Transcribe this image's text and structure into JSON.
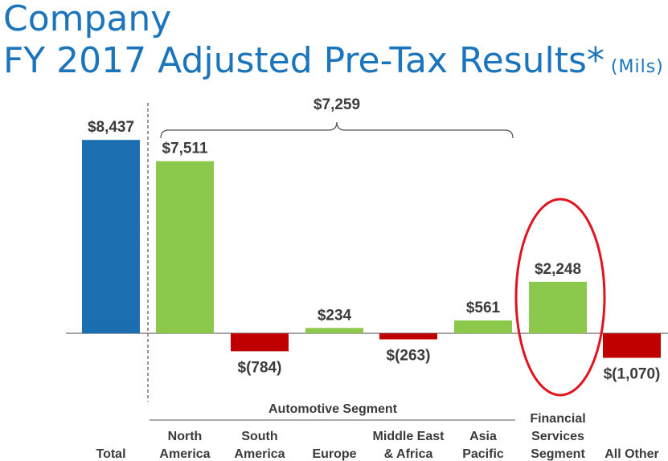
{
  "title_line1": "Company",
  "title_line2": "FY 2017 Adjusted Pre-Tax Results*",
  "units": "(Mils)",
  "colors": {
    "total": "#1b6fb1",
    "positive": "#8cc84b",
    "negative": "#c00000",
    "highlight_circle": "#e0141e",
    "axis": "#3b3b3b"
  },
  "chart_data": {
    "type": "bar",
    "categories": [
      "Total",
      "North America",
      "South America",
      "Europe",
      "Middle East & Africa",
      "Asia Pacific",
      "Financial Services Segment",
      "All Other"
    ],
    "category_lines": [
      [
        "Total"
      ],
      [
        "North",
        "America"
      ],
      [
        "South",
        "America"
      ],
      [
        "Europe"
      ],
      [
        "Middle East",
        "& Africa"
      ],
      [
        "Asia",
        "Pacific"
      ],
      [
        "Financial",
        "Services",
        "Segment"
      ],
      [
        "All Other"
      ]
    ],
    "values": [
      8437,
      7511,
      -784,
      234,
      -263,
      561,
      2248,
      -1070
    ],
    "value_labels": [
      "$8,437",
      "$7,511",
      "$(784)",
      "$234",
      "$(263)",
      "$561",
      "$2,248",
      "$(1,070)"
    ],
    "group_label": "Automotive Segment",
    "bracket_label": "$7,259",
    "highlighted_category": "Financial Services Segment"
  }
}
